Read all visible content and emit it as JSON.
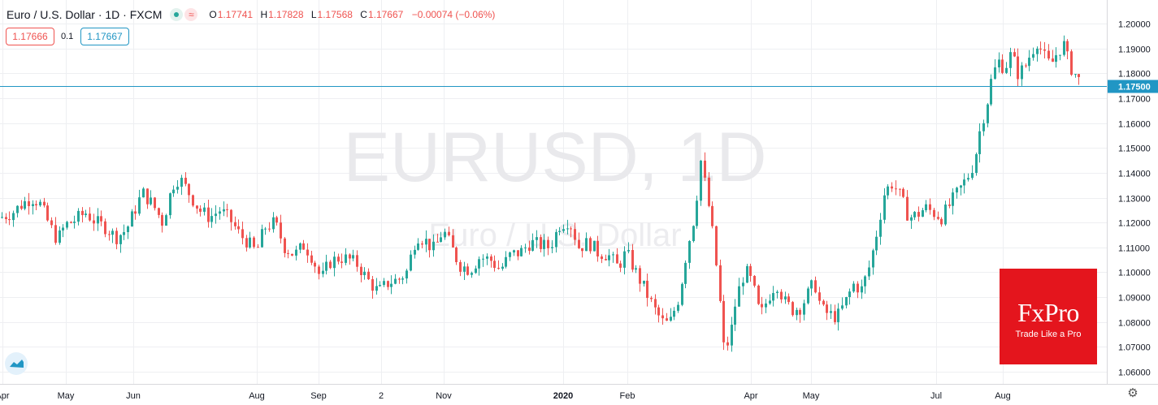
{
  "header": {
    "symbol": "Euro / U.S. Dollar · 1D · FXCM",
    "icon_indicator": "green-dot-icon",
    "icon_wave": "≈",
    "open_label": "O",
    "open": "1.17741",
    "high_label": "H",
    "high": "1.17828",
    "low_label": "L",
    "low": "1.17568",
    "close_label": "C",
    "close": "1.17667",
    "change": "−0.00074 (−0.06%)"
  },
  "quote": {
    "bid": "1.17666",
    "spread": "0.1",
    "ask": "1.17667"
  },
  "watermark": {
    "main": "EURUSD, 1D",
    "sub": "Euro / U.S. Dollar"
  },
  "badge": {
    "logo": "FxPro",
    "tagline": "Trade Like a Pro"
  },
  "colors": {
    "up": "#26a69a",
    "down": "#ef5350",
    "hline": "#2196c4",
    "grid": "#eeeff2",
    "badge": "#e4151d"
  },
  "chart_data": {
    "type": "candlestick",
    "symbol": "EURUSD",
    "timeframe": "1D",
    "y_range": [
      1.0575,
      1.2065
    ],
    "y_ticks": [
      "1.20000",
      "1.19000",
      "1.18000",
      "1.17000",
      "1.16000",
      "1.15000",
      "1.14000",
      "1.13000",
      "1.12000",
      "1.11000",
      "1.10000",
      "1.09000",
      "1.08000",
      "1.07000",
      "1.06000"
    ],
    "horizontal_line": {
      "value": 1.175,
      "label": "1.17500"
    },
    "x_labels": [
      "Apr",
      "May",
      "Jun",
      "Aug",
      "Sep",
      "2",
      "Nov",
      "2020",
      "Feb",
      "Apr",
      "May",
      "Jul",
      "Aug"
    ],
    "close_path": [
      [
        0,
        1.122
      ],
      [
        15,
        1.124
      ],
      [
        25,
        1.127
      ],
      [
        38,
        1.13
      ],
      [
        48,
        1.128
      ],
      [
        62,
        1.118
      ],
      [
        70,
        1.113
      ],
      [
        80,
        1.119
      ],
      [
        92,
        1.121
      ],
      [
        105,
        1.124
      ],
      [
        118,
        1.12
      ],
      [
        130,
        1.118
      ],
      [
        142,
        1.114
      ],
      [
        155,
        1.117
      ],
      [
        163,
        1.123
      ],
      [
        175,
        1.132
      ],
      [
        188,
        1.127
      ],
      [
        200,
        1.12
      ],
      [
        212,
        1.135
      ],
      [
        220,
        1.138
      ],
      [
        232,
        1.132
      ],
      [
        245,
        1.125
      ],
      [
        258,
        1.122
      ],
      [
        270,
        1.125
      ],
      [
        283,
        1.121
      ],
      [
        295,
        1.115
      ],
      [
        305,
        1.112
      ],
      [
        315,
        1.108
      ],
      [
        325,
        1.118
      ],
      [
        338,
        1.12
      ],
      [
        350,
        1.11
      ],
      [
        362,
        1.107
      ],
      [
        374,
        1.111
      ],
      [
        384,
        1.106
      ],
      [
        395,
        1.097
      ],
      [
        405,
        1.104
      ],
      [
        418,
        1.106
      ],
      [
        430,
        1.105
      ],
      [
        440,
        1.103
      ],
      [
        452,
        1.097
      ],
      [
        465,
        1.092
      ],
      [
        478,
        1.096
      ],
      [
        490,
        1.097
      ],
      [
        500,
        1.1
      ],
      [
        512,
        1.115
      ],
      [
        522,
        1.113
      ],
      [
        534,
        1.109
      ],
      [
        545,
        1.117
      ],
      [
        555,
        1.11
      ],
      [
        565,
        1.103
      ],
      [
        578,
        1.101
      ],
      [
        590,
        1.106
      ],
      [
        603,
        1.105
      ],
      [
        615,
        1.101
      ],
      [
        628,
        1.107
      ],
      [
        640,
        1.108
      ],
      [
        652,
        1.112
      ],
      [
        664,
        1.111
      ],
      [
        676,
        1.11
      ],
      [
        688,
        1.119
      ],
      [
        700,
        1.121
      ],
      [
        712,
        1.11
      ],
      [
        724,
        1.112
      ],
      [
        735,
        1.108
      ],
      [
        748,
        1.107
      ],
      [
        760,
        1.102
      ],
      [
        770,
        1.108
      ],
      [
        782,
        1.1
      ],
      [
        793,
        1.093
      ],
      [
        805,
        1.085
      ],
      [
        815,
        1.08
      ],
      [
        823,
        1.079
      ],
      [
        835,
        1.09
      ],
      [
        845,
        1.109
      ],
      [
        855,
        1.124
      ],
      [
        862,
        1.145
      ],
      [
        870,
        1.13
      ],
      [
        878,
        1.112
      ],
      [
        885,
        1.09
      ],
      [
        890,
        1.07
      ],
      [
        897,
        1.072
      ],
      [
        905,
        1.088
      ],
      [
        913,
        1.098
      ],
      [
        920,
        1.1
      ],
      [
        928,
        1.092
      ],
      [
        935,
        1.082
      ],
      [
        945,
        1.09
      ],
      [
        955,
        1.096
      ],
      [
        965,
        1.088
      ],
      [
        975,
        1.085
      ],
      [
        985,
        1.086
      ],
      [
        995,
        1.092
      ],
      [
        1002,
        1.096
      ],
      [
        1010,
        1.085
      ],
      [
        1020,
        1.083
      ],
      [
        1030,
        1.082
      ],
      [
        1040,
        1.088
      ],
      [
        1050,
        1.095
      ],
      [
        1060,
        1.093
      ],
      [
        1070,
        1.103
      ],
      [
        1078,
        1.115
      ],
      [
        1088,
        1.132
      ],
      [
        1098,
        1.136
      ],
      [
        1108,
        1.13
      ],
      [
        1118,
        1.122
      ],
      [
        1128,
        1.123
      ],
      [
        1138,
        1.126
      ],
      [
        1148,
        1.124
      ],
      [
        1158,
        1.122
      ],
      [
        1170,
        1.128
      ],
      [
        1180,
        1.133
      ],
      [
        1190,
        1.138
      ],
      [
        1198,
        1.144
      ],
      [
        1206,
        1.158
      ],
      [
        1214,
        1.168
      ],
      [
        1220,
        1.178
      ],
      [
        1228,
        1.185
      ],
      [
        1236,
        1.182
      ],
      [
        1244,
        1.188
      ],
      [
        1252,
        1.18
      ],
      [
        1260,
        1.182
      ],
      [
        1268,
        1.188
      ],
      [
        1276,
        1.193
      ],
      [
        1284,
        1.187
      ],
      [
        1292,
        1.183
      ],
      [
        1300,
        1.188
      ],
      [
        1308,
        1.192
      ],
      [
        1316,
        1.183
      ],
      [
        1322,
        1.18
      ],
      [
        1328,
        1.177
      ]
    ],
    "close_path_note": "date-position index → close price (approximate reading of the daily candles)"
  }
}
